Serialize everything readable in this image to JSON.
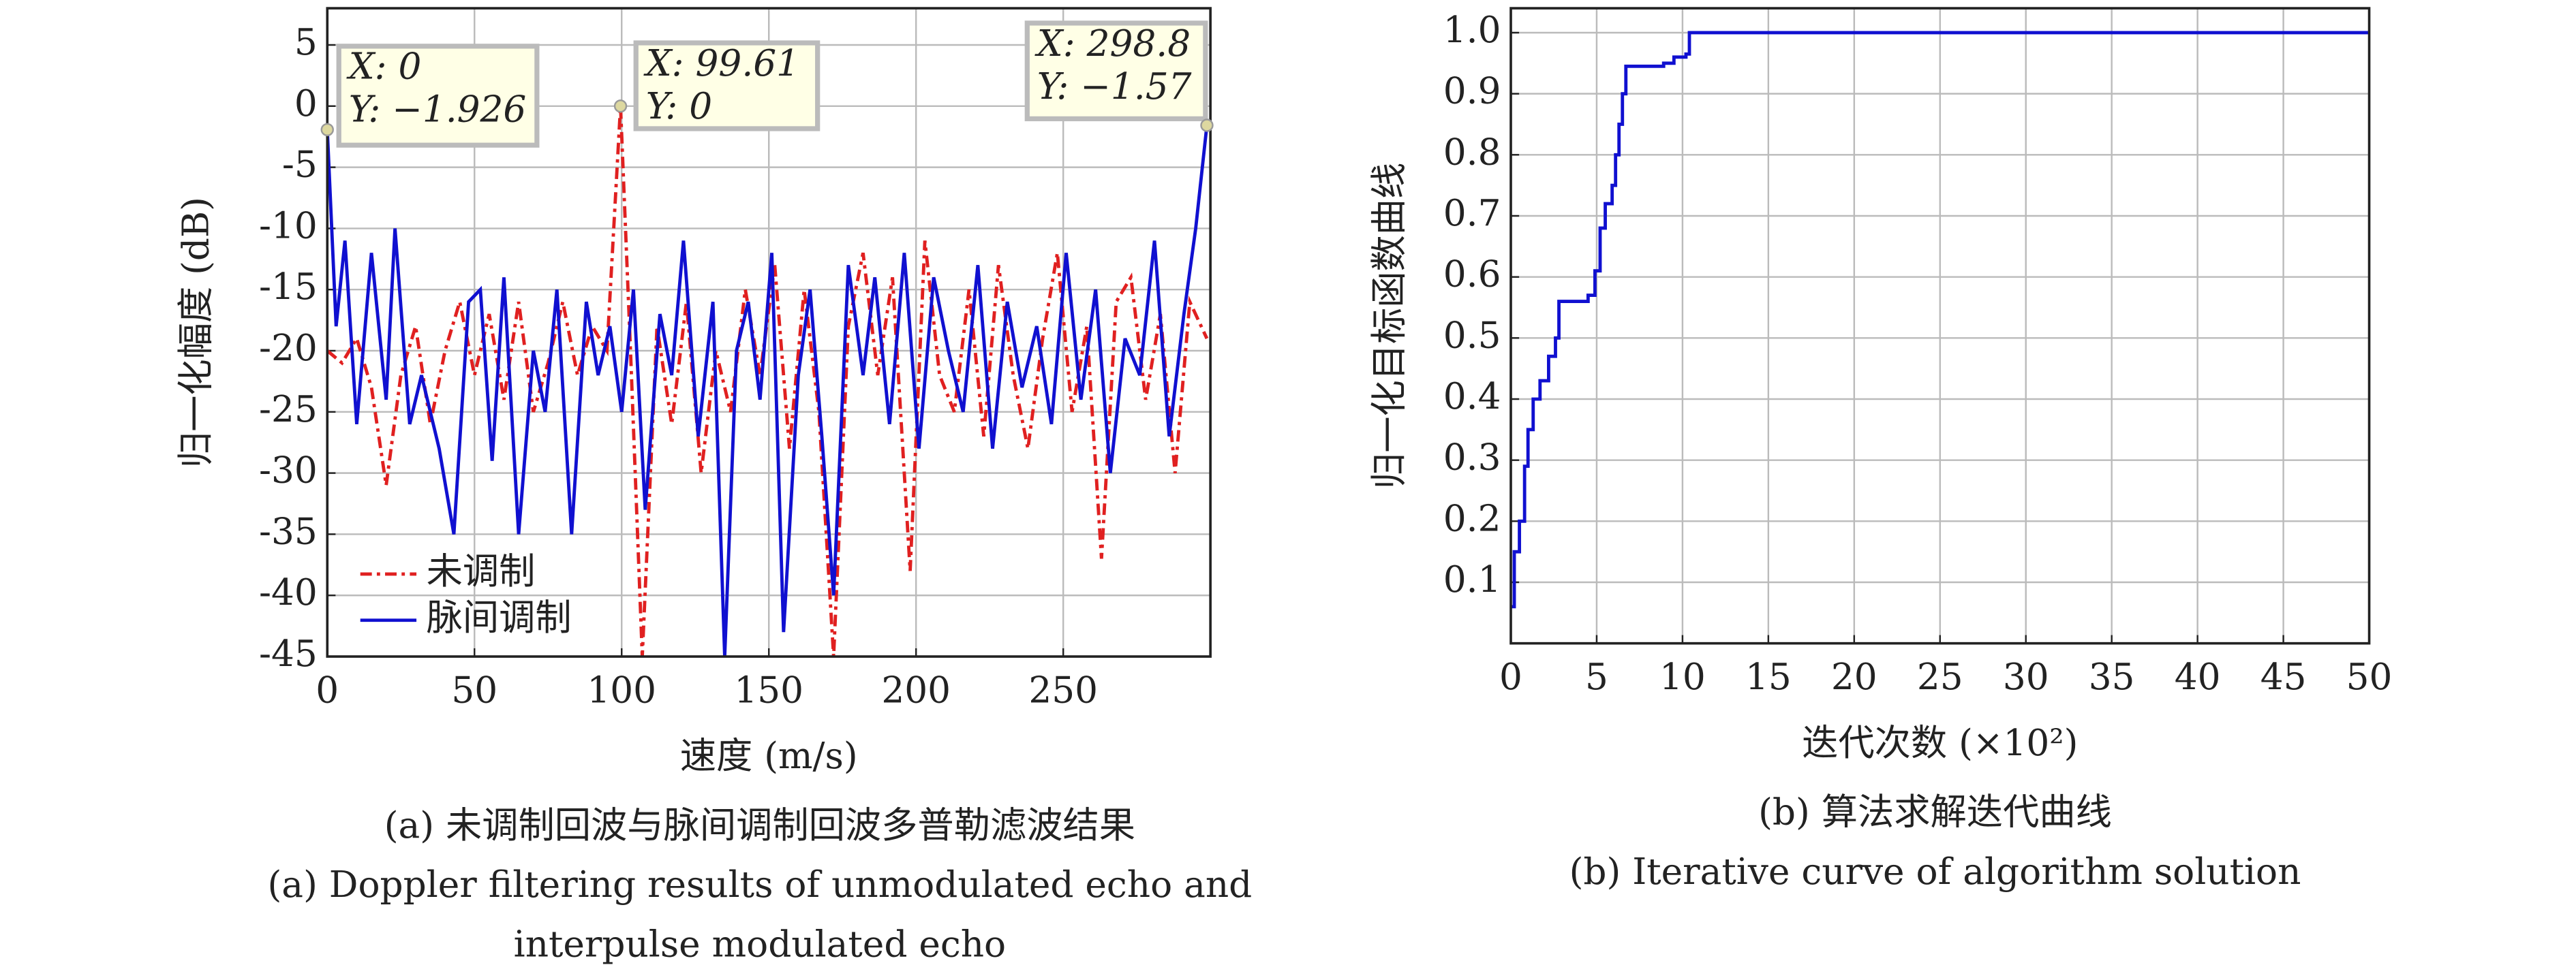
{
  "chart_data": [
    {
      "type": "line",
      "xlabel": "速度 (m/s)",
      "ylabel": "归一化幅度 (dB)",
      "caption": [
        "(a) 未调制回波与脉间调制回波多普勒滤波结果",
        "(a) Doppler filtering results of unmodulated echo and",
        "interpulse modulated echo"
      ],
      "xlim": [
        0,
        300
      ],
      "xticks": [
        0,
        50,
        100,
        150,
        200,
        250
      ],
      "ylim": [
        -45,
        8
      ],
      "yticks": [
        5,
        0,
        -5,
        -10,
        -15,
        -20,
        -25,
        -30,
        -35,
        -40,
        -45
      ],
      "grid": true,
      "legend": "lower left",
      "series": [
        {
          "name": "未调制",
          "color": "#e02020",
          "dash": true,
          "x": [
            0,
            5,
            10,
            15,
            20,
            25,
            30,
            35,
            40,
            45,
            50,
            55,
            60,
            65,
            70,
            75,
            80,
            85,
            90,
            95,
            99.61,
            103,
            107,
            112,
            117,
            122,
            127,
            132,
            137,
            142,
            147,
            152,
            157,
            162,
            167,
            172,
            177,
            182,
            187,
            192,
            198,
            203,
            208,
            213,
            218,
            223,
            228,
            233,
            238,
            243,
            248,
            253,
            258,
            263,
            268,
            273,
            278,
            283,
            288,
            293,
            298.8
          ],
          "values": [
            -20,
            -21,
            -19,
            -23,
            -31,
            -22,
            -18,
            -26,
            -20,
            -16,
            -22,
            -17,
            -24,
            -16,
            -25,
            -21,
            -16,
            -22,
            -18,
            -20,
            0,
            -20,
            -45,
            -18,
            -26,
            -16,
            -30,
            -20,
            -25,
            -15,
            -22,
            -13,
            -28,
            -15,
            -25,
            -45,
            -18,
            -12,
            -22,
            -14,
            -38,
            -11,
            -22,
            -25,
            -15,
            -27,
            -13,
            -22,
            -28,
            -19,
            -12,
            -25,
            -18,
            -37,
            -16,
            -14,
            -24,
            -17,
            -30,
            -16,
            -19
          ]
        },
        {
          "name": "脉间调制",
          "color": "#1010d0",
          "dash": false,
          "x": [
            0,
            3,
            6,
            10,
            15,
            20,
            23,
            28,
            32,
            38,
            43,
            48,
            52,
            56,
            60,
            65,
            70,
            74,
            78,
            83,
            88,
            92,
            96,
            100,
            104,
            108,
            113,
            117,
            121,
            126,
            131,
            135,
            139,
            143,
            147,
            151,
            155,
            160,
            164,
            168,
            172,
            177,
            182,
            186,
            191,
            196,
            201,
            206,
            211,
            216,
            221,
            226,
            231,
            236,
            241,
            246,
            251,
            256,
            261,
            266,
            271,
            276,
            281,
            286,
            291,
            295,
            298.8
          ],
          "values": [
            -1.926,
            -18,
            -11,
            -26,
            -12,
            -24,
            -10,
            -26,
            -22,
            -28,
            -35,
            -16,
            -15,
            -29,
            -14,
            -35,
            -20,
            -25,
            -15,
            -35,
            -16,
            -22,
            -18,
            -25,
            -15,
            -33,
            -17,
            -22,
            -11,
            -27,
            -16,
            -45,
            -20,
            -16,
            -24,
            -12,
            -43,
            -22,
            -15,
            -27,
            -40,
            -13,
            -22,
            -14,
            -26,
            -12,
            -28,
            -14,
            -20,
            -25,
            -13,
            -28,
            -16,
            -23,
            -18,
            -26,
            -12,
            -24,
            -15,
            -30,
            -19,
            -22,
            -11,
            -27,
            -17,
            -10,
            -1.57
          ]
        }
      ],
      "annotations": [
        {
          "x": 0,
          "y": -1.926,
          "text": [
            "X: 0",
            "Y: −1.926"
          ]
        },
        {
          "x": 99.61,
          "y": 0,
          "text": [
            "X: 99.61",
            "Y: 0"
          ]
        },
        {
          "x": 298.8,
          "y": -1.57,
          "text": [
            "X: 298.8",
            "Y: −1.57"
          ]
        }
      ]
    },
    {
      "type": "step",
      "xlabel": "迭代次数 (×10²)",
      "ylabel": "归一化目标函数曲线",
      "caption": [
        "(b) 算法求解迭代曲线",
        "(b) Iterative curve of algorithm solution"
      ],
      "xlim": [
        0,
        50
      ],
      "xticks": [
        0,
        5,
        10,
        15,
        20,
        25,
        30,
        35,
        40,
        45,
        50
      ],
      "ylim": [
        0,
        1.04
      ],
      "yticks": [
        {
          "value": 1,
          "label": "1.0"
        },
        0.9,
        0.8,
        0.7,
        0.6,
        0.5,
        0.4,
        0.3,
        0.2,
        0.1
      ],
      "grid": true,
      "series": [
        {
          "color": "#1010d0",
          "x": [
            0,
            0.2,
            0.5,
            0.8,
            1,
            1.3,
            1.7,
            2.2,
            2.6,
            2.8,
            4.5,
            4.9,
            5.2,
            5.5,
            5.9,
            6.1,
            6.3,
            6.5,
            6.7,
            8.9,
            9.5,
            10.2,
            10.4,
            50
          ],
          "values": [
            0.06,
            0.15,
            0.2,
            0.29,
            0.35,
            0.4,
            0.43,
            0.47,
            0.5,
            0.56,
            0.57,
            0.61,
            0.68,
            0.72,
            0.75,
            0.8,
            0.85,
            0.9,
            0.945,
            0.95,
            0.96,
            0.965,
            1.0,
            1.0
          ]
        }
      ]
    }
  ]
}
